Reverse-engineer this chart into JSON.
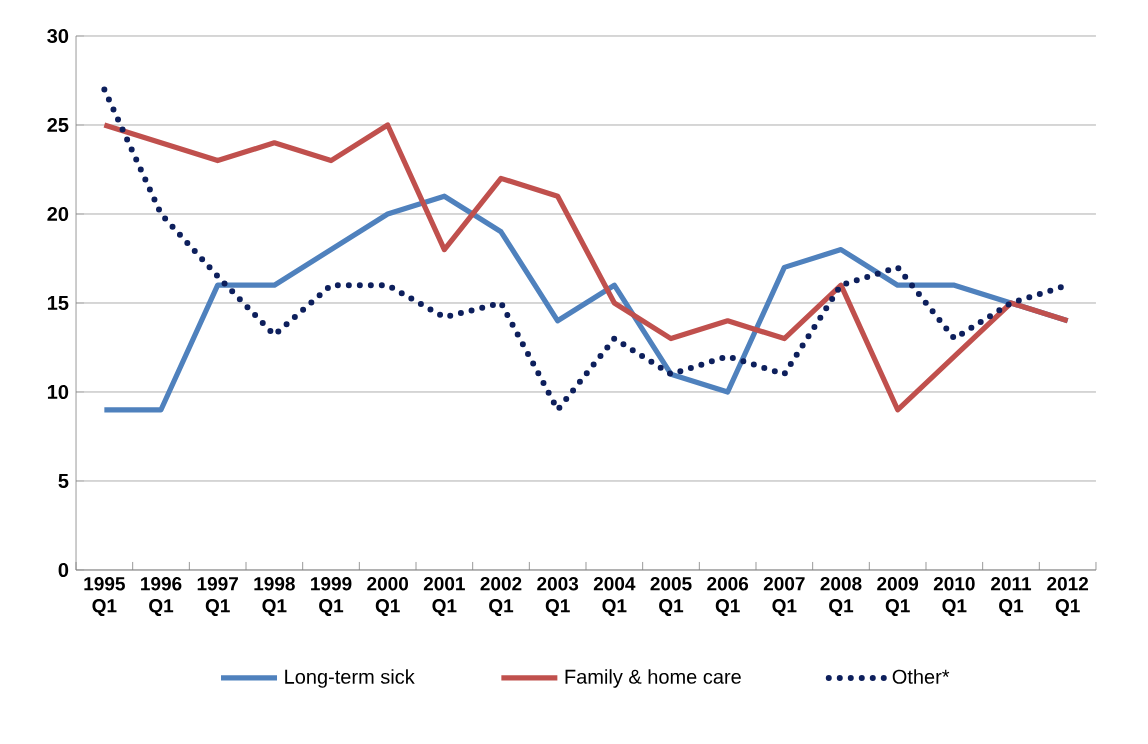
{
  "chart_data": {
    "type": "line",
    "categories": [
      "1995 Q1",
      "1996 Q1",
      "1997 Q1",
      "1998 Q1",
      "1999 Q1",
      "2000 Q1",
      "2001 Q1",
      "2002 Q1",
      "2003 Q1",
      "2004 Q1",
      "2005 Q1",
      "2006 Q1",
      "2007 Q1",
      "2008 Q1",
      "2009 Q1",
      "2010 Q1",
      "2011 Q1",
      "2012 Q1"
    ],
    "series": [
      {
        "name": "Long-term sick",
        "color": "#4f81bd",
        "line_style": "solid",
        "values": [
          9,
          9,
          16,
          16,
          18,
          20,
          21,
          19,
          14,
          16,
          11,
          10,
          17,
          18,
          16,
          16,
          15,
          14
        ]
      },
      {
        "name": "Family & home care",
        "color": "#c0504d",
        "line_style": "solid",
        "values": [
          25,
          24,
          23,
          24,
          23,
          25,
          18,
          22,
          21,
          15,
          13,
          14,
          13,
          16,
          9,
          12,
          15,
          14
        ]
      },
      {
        "name": "Other*",
        "color": "#0d1f5c",
        "line_style": "dotted",
        "values": [
          27,
          20,
          16.5,
          13.2,
          16,
          16,
          14.2,
          15,
          9,
          13,
          11,
          12,
          11,
          16,
          17,
          13,
          15,
          16
        ]
      }
    ],
    "ylim": [
      0,
      30
    ],
    "yticks": [
      0,
      5,
      10,
      15,
      20,
      25,
      30
    ],
    "grid": "y",
    "legend": "bottom"
  }
}
